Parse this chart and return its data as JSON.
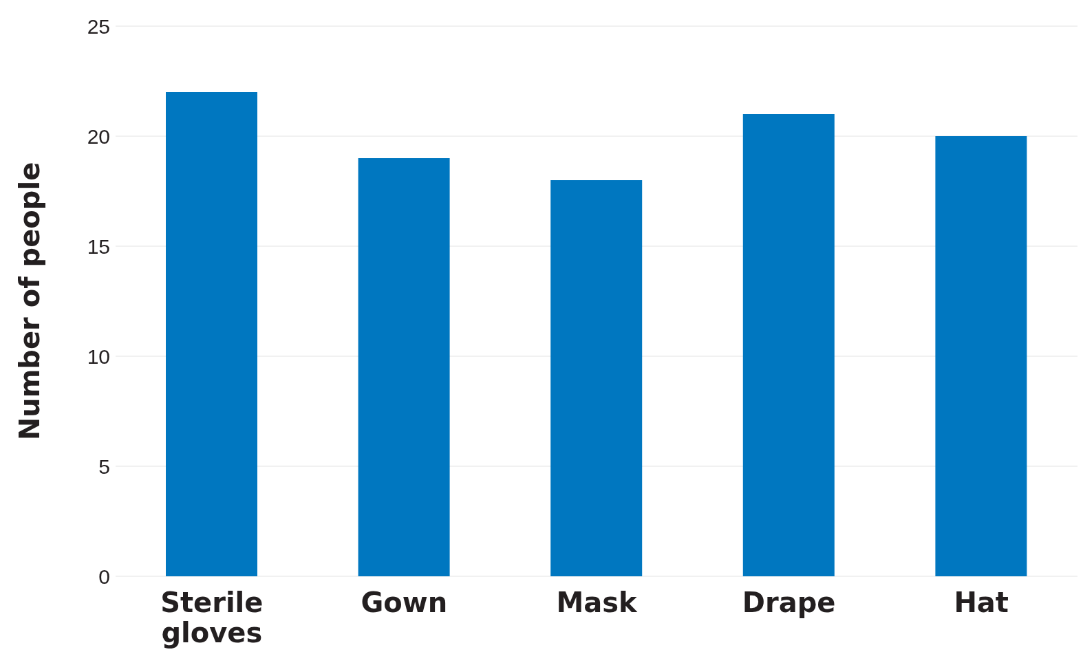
{
  "chart_data": {
    "type": "bar",
    "ylabel": "Number of people",
    "categories": [
      "Sterile gloves",
      "Gown",
      "Mask",
      "Drape",
      "Hat"
    ],
    "values": [
      22,
      19,
      18,
      21,
      20
    ],
    "color": "#0077c0",
    "ylim": [
      0,
      25
    ],
    "yticks": [
      0,
      5,
      10,
      15,
      20,
      25
    ],
    "grid": "y"
  }
}
